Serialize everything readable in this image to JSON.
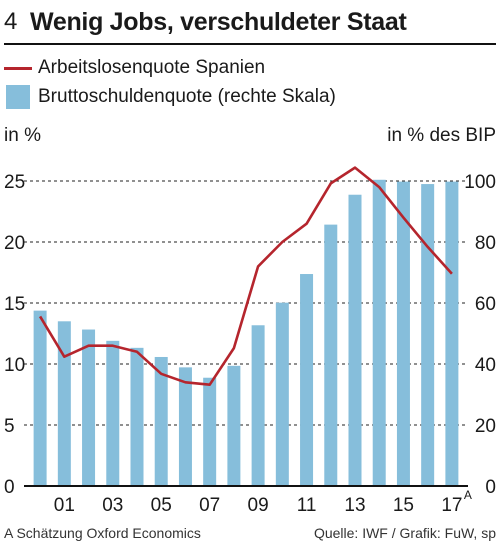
{
  "header": {
    "number": "4",
    "title": "Wenig Jobs, verschuldeter Staat"
  },
  "legend": {
    "line_label": "Arbeitslosenquote Spanien",
    "bar_label": "Bruttoschuldenquote (rechte Skala)"
  },
  "units": {
    "left": "in %",
    "right": "in % des BIP"
  },
  "footer": {
    "note": "A Schätzung Oxford Economics",
    "source": "Quelle: IWF / Grafik: FuW, sp"
  },
  "colors": {
    "line": "#b5252d",
    "bar": "#86bedb",
    "grid": "#222222"
  },
  "chart_data": {
    "type": "bar+line",
    "x": [
      "2000",
      "2001",
      "2002",
      "2003",
      "2004",
      "2005",
      "2006",
      "2007",
      "2008",
      "2009",
      "2010",
      "2011",
      "2012",
      "2013",
      "2014",
      "2015",
      "2016",
      "2017"
    ],
    "x_tick_labels": [
      {
        "index": 1,
        "label": "01"
      },
      {
        "index": 3,
        "label": "03"
      },
      {
        "index": 5,
        "label": "05"
      },
      {
        "index": 7,
        "label": "07"
      },
      {
        "index": 9,
        "label": "09"
      },
      {
        "index": 11,
        "label": "11"
      },
      {
        "index": 13,
        "label": "13"
      },
      {
        "index": 15,
        "label": "15"
      },
      {
        "index": 17,
        "label": "17",
        "superscript": "A"
      }
    ],
    "series": [
      {
        "name": "Arbeitslosenquote Spanien",
        "type": "line",
        "axis": "left",
        "values": [
          13.9,
          10.6,
          11.5,
          11.5,
          11.0,
          9.2,
          8.5,
          8.3,
          11.3,
          18.0,
          20.0,
          21.5,
          24.8,
          26.1,
          24.5,
          22.0,
          19.6,
          17.4
        ]
      },
      {
        "name": "Bruttoschuldenquote (rechte Skala)",
        "type": "bar",
        "axis": "right",
        "values": [
          57.5,
          54,
          51.3,
          47.6,
          45.3,
          42.3,
          38.9,
          35.5,
          39.4,
          52.7,
          60.1,
          69.5,
          85.7,
          95.5,
          100.4,
          99.8,
          99.0,
          99.8
        ]
      }
    ],
    "y_left": {
      "min": 0,
      "max": 25,
      "ticks": [
        0,
        5,
        10,
        15,
        20,
        25
      ]
    },
    "y_right": {
      "min": 0,
      "max": 100,
      "ticks": [
        0,
        20,
        40,
        60,
        80,
        100
      ]
    },
    "grid": "dashed horizontal"
  }
}
